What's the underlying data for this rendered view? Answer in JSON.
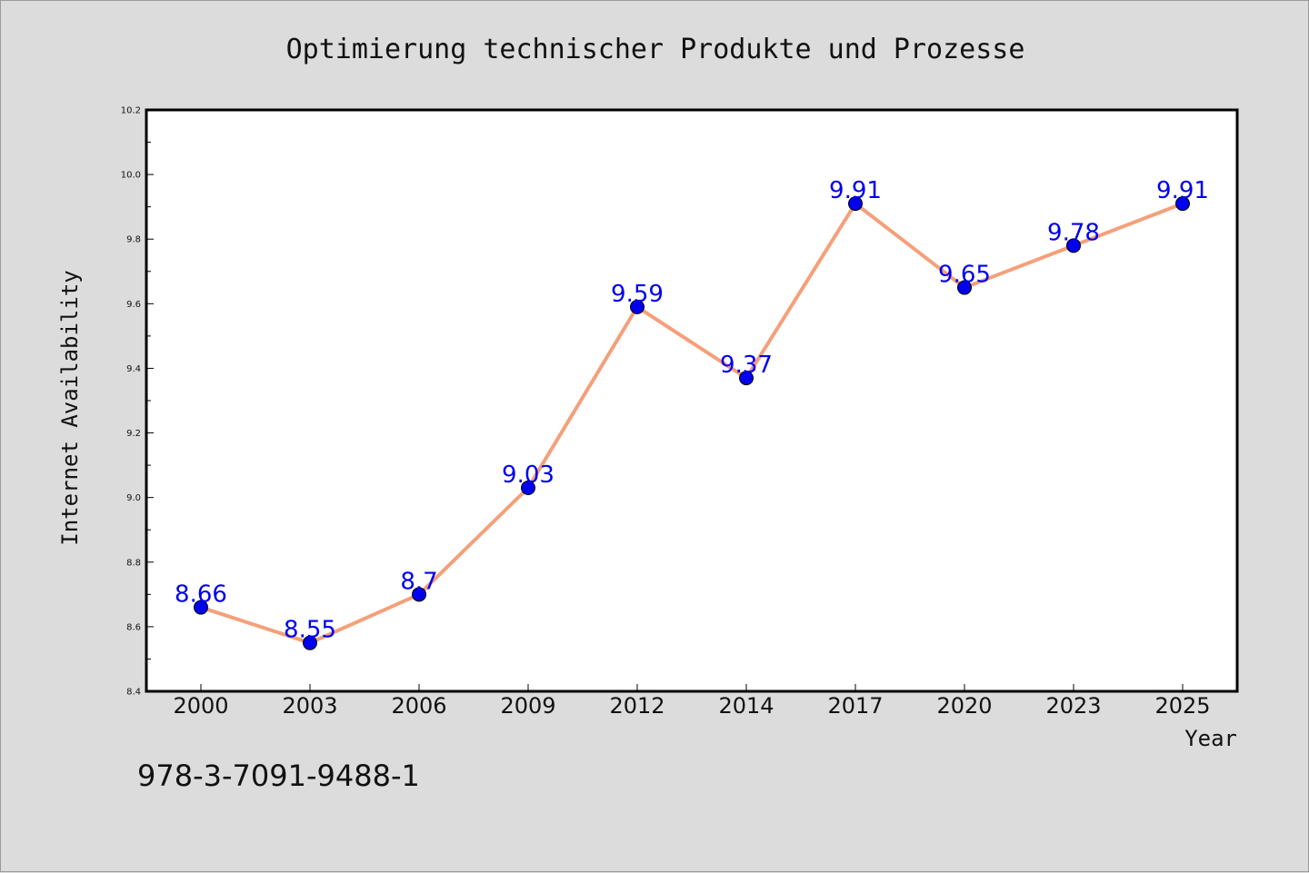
{
  "chart_data": {
    "type": "line",
    "title": "Optimierung technischer Produkte und Prozesse",
    "xlabel": "Year",
    "ylabel": "Internet Availability",
    "categories": [
      "2000",
      "2003",
      "2006",
      "2009",
      "2012",
      "2014",
      "2017",
      "2020",
      "2023",
      "2025"
    ],
    "series": [
      {
        "values": [
          8.66,
          8.55,
          8.7,
          9.03,
          9.59,
          9.37,
          9.91,
          9.65,
          9.78,
          9.91
        ],
        "data_labels": [
          "8.66",
          "8.55",
          "8.7",
          "9.03",
          "9.59",
          "9.37",
          "9.91",
          "9.65",
          "9.78",
          "9.91"
        ],
        "line_color": "#f4a07a",
        "marker_color": "#0000ee",
        "label_color": "#0000ee"
      }
    ],
    "ylim": [
      8.4,
      10.2
    ],
    "yticks": [
      "8.4",
      "8.6",
      "8.8",
      "9.0",
      "9.2",
      "9.4",
      "9.6",
      "9.8",
      "10.0",
      "10.2"
    ],
    "grid": false,
    "legend": "none",
    "footer": "978-3-7091-9488-1"
  }
}
